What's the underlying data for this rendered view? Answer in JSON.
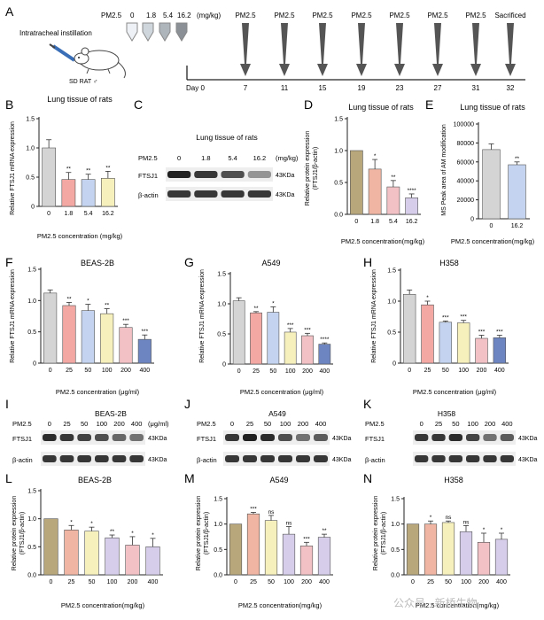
{
  "panel_letters": [
    "A",
    "B",
    "C",
    "D",
    "E",
    "F",
    "G",
    "H",
    "I",
    "J",
    "K",
    "L",
    "M",
    "N"
  ],
  "panelA": {
    "instillation": "Intratracheal instillation",
    "rat": "SD RAT ♂",
    "dose_label": "PM2.5",
    "doses": [
      "0",
      "1.8",
      "5.4",
      "16.2"
    ],
    "dose_unit": "(mg/kg)",
    "timeline_events": [
      {
        "label": "PM2.5",
        "day": "7"
      },
      {
        "label": "PM2.5",
        "day": "11"
      },
      {
        "label": "PM2.5",
        "day": "15"
      },
      {
        "label": "PM2.5",
        "day": "19"
      },
      {
        "label": "PM2.5",
        "day": "23"
      },
      {
        "label": "PM2.5",
        "day": "27"
      },
      {
        "label": "PM2.5",
        "day": "31"
      },
      {
        "label": "Sacrificed",
        "day": "32"
      }
    ],
    "day0": "Day 0"
  },
  "colors": {
    "grey": "#d4d4d4",
    "pink": "#f3a8a4",
    "blue": "#c4d4f0",
    "yellow": "#f6f0bd",
    "tan": "#b8a77b",
    "salmon": "#f0b6a3",
    "rose": "#f1c1c5",
    "lavender": "#d5cde9",
    "navy": "#6d86c2"
  },
  "chart_data": [
    {
      "panel": "B",
      "type": "bar",
      "title": "Lung tissue of rats",
      "ylabel": "Relative FTSJ1 mRNA expression",
      "xlabel": "PM2.5 concentration (mg/kg)",
      "categories": [
        "0",
        "1.8",
        "5.4",
        "16.2"
      ],
      "values": [
        1.0,
        0.46,
        0.46,
        0.48
      ],
      "errors": [
        0.14,
        0.12,
        0.09,
        0.12
      ],
      "sig": [
        "",
        "**",
        "**",
        "**"
      ],
      "ylim": [
        0,
        1.5
      ],
      "yticks": [
        "0",
        "0.5",
        "1.0",
        "1.5"
      ],
      "colors": [
        "grey",
        "pink",
        "blue",
        "yellow"
      ]
    },
    {
      "panel": "D",
      "type": "bar",
      "title": "Lung tissue of rats",
      "ylabel": "Relative protein expression (FTSJ1/β-actin)",
      "xlabel": "PM2.5 concentration(mg/kg)",
      "categories": [
        "0",
        "1.8",
        "5.4",
        "16.2"
      ],
      "values": [
        1.0,
        0.71,
        0.43,
        0.26
      ],
      "errors": [
        0.0,
        0.15,
        0.1,
        0.06
      ],
      "sig": [
        "",
        "*",
        "**",
        "****"
      ],
      "ylim": [
        0,
        1.5
      ],
      "yticks": [
        "0.0",
        "0.5",
        "1.0",
        "1.5"
      ],
      "colors": [
        "tan",
        "salmon",
        "rose",
        "lavender"
      ]
    },
    {
      "panel": "E",
      "type": "bar",
      "title": "Lung tissue of rats",
      "ylabel": "MS Peak area of AM modification",
      "xlabel": "PM2.5 concentration(mg/kg)",
      "categories": [
        "0",
        "16.2"
      ],
      "values": [
        73000,
        57000
      ],
      "errors": [
        6000,
        3000
      ],
      "sig": [
        "",
        "**"
      ],
      "ylim": [
        0,
        100000
      ],
      "yticks": [
        "0",
        "20000",
        "40000",
        "60000",
        "80000",
        "100000"
      ],
      "colors": [
        "grey",
        "blue"
      ]
    },
    {
      "panel": "F",
      "type": "bar",
      "title": "BEAS-2B",
      "ylabel": "Relative FTSJ1 mRNA expression",
      "xlabel": "PM2.5 concentration (μg/ml)",
      "categories": [
        "0",
        "25",
        "50",
        "100",
        "200",
        "400"
      ],
      "values": [
        1.12,
        0.92,
        0.84,
        0.79,
        0.57,
        0.38
      ],
      "errors": [
        0.05,
        0.05,
        0.1,
        0.08,
        0.05,
        0.07
      ],
      "sig": [
        "",
        "**",
        "*",
        "**",
        "***",
        "***"
      ],
      "ylim": [
        0,
        1.5
      ],
      "yticks": [
        "0",
        "0.5",
        "1.0",
        "1.5"
      ],
      "colors": [
        "grey",
        "pink",
        "blue",
        "yellow",
        "rose",
        "navy"
      ]
    },
    {
      "panel": "G",
      "type": "bar",
      "title": "A549",
      "ylabel": "Relative FTSJ1 mRNA expression",
      "xlabel": "PM2.5 concentration (μg/ml)",
      "categories": [
        "0",
        "25",
        "50",
        "100",
        "200",
        "400"
      ],
      "values": [
        1.05,
        0.85,
        0.86,
        0.53,
        0.47,
        0.33
      ],
      "errors": [
        0.05,
        0.02,
        0.09,
        0.06,
        0.04,
        0.02
      ],
      "sig": [
        "",
        "**",
        "*",
        "***",
        "***",
        "****"
      ],
      "ylim": [
        0,
        1.5
      ],
      "yticks": [
        "0",
        "0.5",
        "1.0",
        "1.5"
      ],
      "colors": [
        "grey",
        "pink",
        "blue",
        "yellow",
        "rose",
        "navy"
      ]
    },
    {
      "panel": "H",
      "type": "bar",
      "title": "H358",
      "ylabel": "Relative FTSJ1 mRNA expression",
      "xlabel": "PM2.5 concentration (μg/ml)",
      "categories": [
        "0",
        "25",
        "50",
        "100",
        "200",
        "400"
      ],
      "values": [
        1.11,
        0.94,
        0.66,
        0.65,
        0.4,
        0.41
      ],
      "errors": [
        0.07,
        0.06,
        0.02,
        0.04,
        0.05,
        0.04
      ],
      "sig": [
        "",
        "*",
        "***",
        "***",
        "***",
        "***"
      ],
      "ylim": [
        0,
        1.5
      ],
      "yticks": [
        "0",
        "0.5",
        "1.0",
        "1.5"
      ],
      "colors": [
        "grey",
        "pink",
        "blue",
        "yellow",
        "rose",
        "navy"
      ]
    },
    {
      "panel": "L",
      "type": "bar",
      "title": "BEAS-2B",
      "ylabel": "Relative protein expression (FTSJ1/β-actin)",
      "xlabel": "PM2.5 concentration(mg/kg)",
      "categories": [
        "0",
        "25",
        "50",
        "100",
        "200",
        "400"
      ],
      "values": [
        1.0,
        0.8,
        0.78,
        0.66,
        0.53,
        0.5
      ],
      "errors": [
        0.0,
        0.08,
        0.07,
        0.05,
        0.15,
        0.15
      ],
      "sig": [
        "",
        "*",
        "*",
        "**",
        "*",
        "*"
      ],
      "ylim": [
        0,
        1.5
      ],
      "yticks": [
        "0.0",
        "0.5",
        "1.0",
        "1.5"
      ],
      "colors": [
        "tan",
        "salmon",
        "yellow",
        "lavender",
        "rose",
        "lavender"
      ]
    },
    {
      "panel": "M",
      "type": "bar",
      "title": "A549",
      "ylabel": "Relative protein expression (FTSJ1/β-actin)",
      "xlabel": "PM2.5 concentration(mg/kg)",
      "categories": [
        "0",
        "25",
        "50",
        "100",
        "200",
        "400"
      ],
      "values": [
        1.0,
        1.2,
        1.07,
        0.8,
        0.57,
        0.74
      ],
      "errors": [
        0.0,
        0.03,
        0.1,
        0.15,
        0.07,
        0.06
      ],
      "sig": [
        "",
        "***",
        "ns",
        "ns",
        "***",
        "**"
      ],
      "ylim": [
        0,
        1.5
      ],
      "yticks": [
        "0.0",
        "0.5",
        "1.0",
        "1.5"
      ],
      "colors": [
        "tan",
        "salmon",
        "yellow",
        "lavender",
        "rose",
        "lavender"
      ]
    },
    {
      "panel": "N",
      "type": "bar",
      "title": "H358",
      "ylabel": "Relative protein expression (FTSJ1/β-actin)",
      "xlabel": "PM2.5 concentration(mg/kg)",
      "categories": [
        "0",
        "25",
        "50",
        "100",
        "200",
        "400"
      ],
      "values": [
        1.0,
        1.0,
        1.03,
        0.85,
        0.64,
        0.7
      ],
      "errors": [
        0.0,
        0.06,
        0.03,
        0.12,
        0.18,
        0.12
      ],
      "sig": [
        "",
        "*",
        "ns",
        "ns",
        "*",
        "*"
      ],
      "ylim": [
        0,
        1.5
      ],
      "yticks": [
        "0.0",
        "0.5",
        "1.0",
        "1.5"
      ],
      "colors": [
        "tan",
        "salmon",
        "yellow",
        "lavender",
        "rose",
        "lavender"
      ]
    }
  ],
  "blots": {
    "C": {
      "title": "Lung tissue of rats",
      "conc_label": "PM2.5",
      "doses": [
        "0",
        "1.8",
        "5.4",
        "16.2"
      ],
      "unit": "(mg/kg)",
      "rows": [
        "FTSJ1",
        "β-actin"
      ],
      "kda": [
        "43KDa",
        "43KDa"
      ]
    },
    "I": {
      "title": "BEAS-2B",
      "conc_label": "PM2.5",
      "doses": [
        "0",
        "25",
        "50",
        "100",
        "200",
        "400"
      ],
      "unit": "(μg/ml)",
      "rows": [
        "FTSJ1",
        "β-actin"
      ],
      "kda": [
        "43KDa",
        "43KDa"
      ]
    },
    "J": {
      "title": "A549",
      "conc_label": "PM2.5",
      "doses": [
        "0",
        "25",
        "50",
        "100",
        "200",
        "400"
      ],
      "rows": [
        "FTSJ1",
        "β-actin"
      ],
      "kda": [
        "43KDa",
        "43KDa"
      ]
    },
    "K": {
      "title": "H358",
      "conc_label": "PM2.5",
      "doses": [
        "0",
        "25",
        "50",
        "100",
        "200",
        "400"
      ],
      "rows": [
        "FTSJ1",
        "β-actin"
      ],
      "kda": [
        "43KDa",
        "43KDa"
      ]
    }
  },
  "watermark": "公众号 · 新桥生物"
}
